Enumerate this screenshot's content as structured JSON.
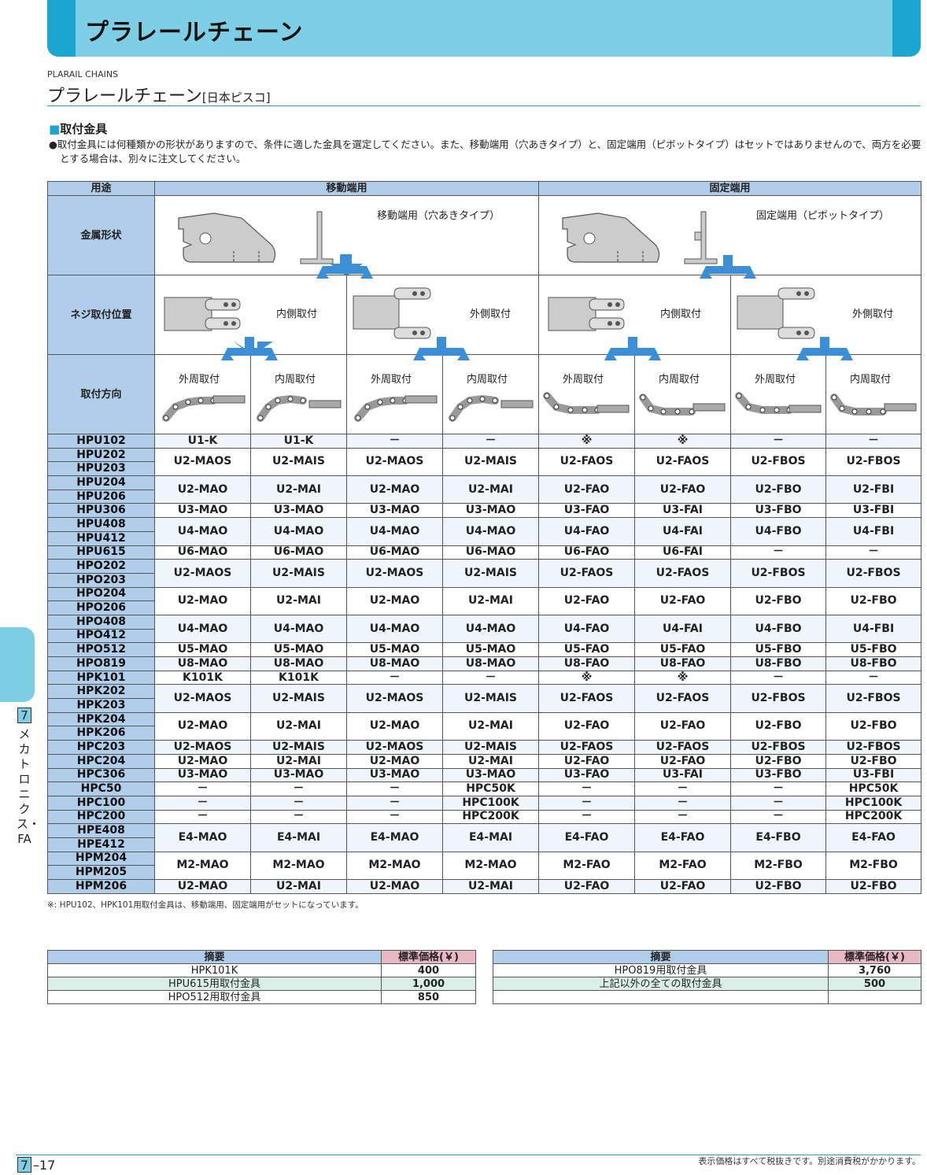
{
  "banner": {
    "title": "プラレールチェーン"
  },
  "subtitle": {
    "en": "PLARAIL CHAINS",
    "jp": "プラレールチェーン",
    "maker": "[日本ピスコ]"
  },
  "section": {
    "heading": "取付金具",
    "note": "●取付金具には何種類かの形状がありますので、条件に適した金具を選定してください。また、移動端用（穴あきタイプ）と、固定端用（ピボットタイプ）はセットではありませんので、両方を必要とする場合は、別々に注文してください。"
  },
  "table": {
    "header": {
      "use": "用途",
      "moving": "移動端用",
      "fixed": "固定端用"
    },
    "row_labels": {
      "shape": "金属形状",
      "screw": "ネジ取付位置",
      "direction": "取付方向"
    },
    "shape_labels": {
      "moving": "移動端用（穴あきタイプ）",
      "fixed": "固定端用（ピボットタイプ）"
    },
    "screw_labels": [
      "内側取付",
      "外側取付",
      "内側取付",
      "外側取付"
    ],
    "direction_labels": [
      "外周取付",
      "内周取付",
      "外周取付",
      "内周取付",
      "外周取付",
      "内周取付",
      "外周取付",
      "内周取付"
    ],
    "groups": [
      {
        "models": [
          "HPU102"
        ],
        "values": [
          "U1-K",
          "U1-K",
          "－",
          "－",
          "※",
          "※",
          "－",
          "－"
        ]
      },
      {
        "models": [
          "HPU202",
          "HPU203"
        ],
        "values": [
          "U2-MAOS",
          "U2-MAIS",
          "U2-MAOS",
          "U2-MAIS",
          "U2-FAOS",
          "U2-FAOS",
          "U2-FBOS",
          "U2-FBOS"
        ]
      },
      {
        "models": [
          "HPU204",
          "HPU206"
        ],
        "values": [
          "U2-MAO",
          "U2-MAI",
          "U2-MAO",
          "U2-MAI",
          "U2-FAO",
          "U2-FAO",
          "U2-FBO",
          "U2-FBI"
        ]
      },
      {
        "models": [
          "HPU306"
        ],
        "values": [
          "U3-MAO",
          "U3-MAO",
          "U3-MAO",
          "U3-MAO",
          "U3-FAO",
          "U3-FAI",
          "U3-FBO",
          "U3-FBI"
        ]
      },
      {
        "models": [
          "HPU408",
          "HPU412"
        ],
        "values": [
          "U4-MAO",
          "U4-MAO",
          "U4-MAO",
          "U4-MAO",
          "U4-FAO",
          "U4-FAI",
          "U4-FBO",
          "U4-FBI"
        ]
      },
      {
        "models": [
          "HPU615"
        ],
        "values": [
          "U6-MAO",
          "U6-MAO",
          "U6-MAO",
          "U6-MAO",
          "U6-FAO",
          "U6-FAI",
          "－",
          "－"
        ]
      },
      {
        "models": [
          "HPO202",
          "HPO203"
        ],
        "values": [
          "U2-MAOS",
          "U2-MAIS",
          "U2-MAOS",
          "U2-MAIS",
          "U2-FAOS",
          "U2-FAOS",
          "U2-FBOS",
          "U2-FBOS"
        ]
      },
      {
        "models": [
          "HPO204",
          "HPO206"
        ],
        "values": [
          "U2-MAO",
          "U2-MAI",
          "U2-MAO",
          "U2-MAI",
          "U2-FAO",
          "U2-FAO",
          "U2-FBO",
          "U2-FBO"
        ]
      },
      {
        "models": [
          "HPO408",
          "HPO412"
        ],
        "values": [
          "U4-MAO",
          "U4-MAO",
          "U4-MAO",
          "U4-MAO",
          "U4-FAO",
          "U4-FAI",
          "U4-FBO",
          "U4-FBI"
        ]
      },
      {
        "models": [
          "HPO512"
        ],
        "values": [
          "U5-MAO",
          "U5-MAO",
          "U5-MAO",
          "U5-MAO",
          "U5-FAO",
          "U5-FAO",
          "U5-FBO",
          "U5-FBO"
        ]
      },
      {
        "models": [
          "HPO819"
        ],
        "values": [
          "U8-MAO",
          "U8-MAO",
          "U8-MAO",
          "U8-MAO",
          "U8-FAO",
          "U8-FAO",
          "U8-FBO",
          "U8-FBO"
        ]
      },
      {
        "models": [
          "HPK101"
        ],
        "values": [
          "K101K",
          "K101K",
          "－",
          "－",
          "※",
          "※",
          "－",
          "－"
        ]
      },
      {
        "models": [
          "HPK202",
          "HPK203"
        ],
        "values": [
          "U2-MAOS",
          "U2-MAIS",
          "U2-MAOS",
          "U2-MAIS",
          "U2-FAOS",
          "U2-FAOS",
          "U2-FBOS",
          "U2-FBOS"
        ]
      },
      {
        "models": [
          "HPK204",
          "HPK206"
        ],
        "values": [
          "U2-MAO",
          "U2-MAI",
          "U2-MAO",
          "U2-MAI",
          "U2-FAO",
          "U2-FAO",
          "U2-FBO",
          "U2-FBO"
        ]
      },
      {
        "models": [
          "HPC203"
        ],
        "values": [
          "U2-MAOS",
          "U2-MAIS",
          "U2-MAOS",
          "U2-MAIS",
          "U2-FAOS",
          "U2-FAOS",
          "U2-FBOS",
          "U2-FBOS"
        ]
      },
      {
        "models": [
          "HPC204"
        ],
        "values": [
          "U2-MAO",
          "U2-MAI",
          "U2-MAO",
          "U2-MAI",
          "U2-FAO",
          "U2-FAO",
          "U2-FBO",
          "U2-FBO"
        ]
      },
      {
        "models": [
          "HPC306"
        ],
        "values": [
          "U3-MAO",
          "U3-MAO",
          "U3-MAO",
          "U3-MAO",
          "U3-FAO",
          "U3-FAI",
          "U3-FBO",
          "U3-FBI"
        ]
      },
      {
        "models": [
          "HPC50"
        ],
        "values": [
          "－",
          "－",
          "－",
          "HPC50K",
          "－",
          "－",
          "－",
          "HPC50K"
        ]
      },
      {
        "models": [
          "HPC100"
        ],
        "values": [
          "－",
          "－",
          "－",
          "HPC100K",
          "－",
          "－",
          "－",
          "HPC100K"
        ]
      },
      {
        "models": [
          "HPC200"
        ],
        "values": [
          "－",
          "－",
          "－",
          "HPC200K",
          "－",
          "－",
          "－",
          "HPC200K"
        ]
      },
      {
        "models": [
          "HPE408",
          "HPE412"
        ],
        "values": [
          "E4-MAO",
          "E4-MAI",
          "E4-MAO",
          "E4-MAI",
          "E4-FAO",
          "E4-FAO",
          "E4-FBO",
          "E4-FAO"
        ]
      },
      {
        "models": [
          "HPM204",
          "HPM205"
        ],
        "values": [
          "M2-MAO",
          "M2-MAO",
          "M2-MAO",
          "M2-MAO",
          "M2-FAO",
          "M2-FAO",
          "M2-FBO",
          "M2-FBO"
        ]
      },
      {
        "models": [
          "HPM206"
        ],
        "values": [
          "U2-MAO",
          "U2-MAI",
          "U2-MAO",
          "U2-MAI",
          "U2-FAO",
          "U2-FAO",
          "U2-FBO",
          "U2-FBO"
        ]
      }
    ]
  },
  "footnote": "※: HPU102、HPK101用取付金具は、移動端用、固定端用がセットになっています。",
  "price_tables": [
    {
      "header": {
        "desc": "摘要",
        "price": "標準価格(￥)"
      },
      "rows": [
        {
          "desc": "HPK101K",
          "price": "400"
        },
        {
          "desc": "HPU615用取付金具",
          "price": "1,000"
        },
        {
          "desc": "HPO512用取付金具",
          "price": "850"
        }
      ]
    },
    {
      "header": {
        "desc": "摘要",
        "price": "標準価格(￥)"
      },
      "rows": [
        {
          "desc": "HPO819用取付金具",
          "price": "3,760"
        },
        {
          "desc": "上記以外の全ての取付金具",
          "price": "500"
        },
        {
          "desc": "",
          "price": ""
        }
      ]
    }
  ],
  "side": {
    "number": "7",
    "text": "メカトロニクス・FA"
  },
  "footer": {
    "page_box": "7",
    "page_rest": "–17",
    "note": "表示価格はすべて税抜きです。別途消費税がかかります。"
  },
  "colors": {
    "accent": "#1ba7d1",
    "banner": "#7ecfe6",
    "header": "#b0cdea",
    "arrow": "#3a8fd6"
  }
}
